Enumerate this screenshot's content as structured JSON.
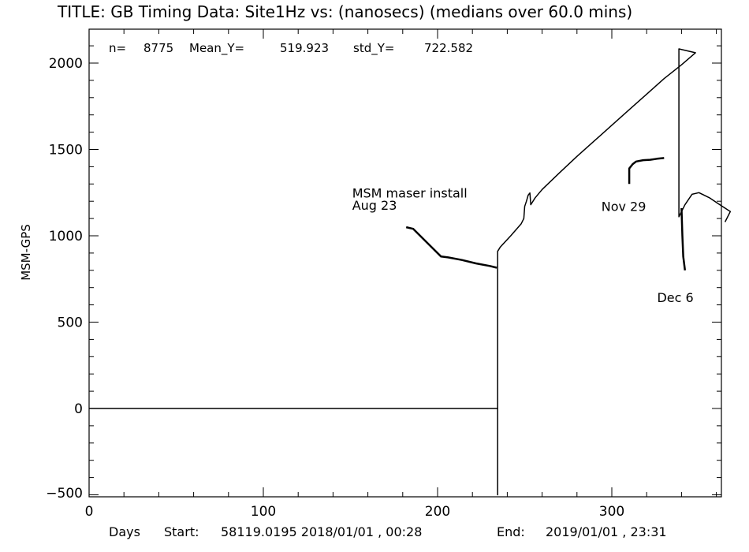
{
  "chart_data": {
    "type": "line",
    "title": "TITLE: GB Timing Data: Site1Hz vs: (nanosecs) (medians over 60.0 mins)",
    "ylabel": "MSM-GPS",
    "xlabel": "",
    "xlim": [
      0,
      365
    ],
    "ylim": [
      -500,
      2200
    ],
    "x_ticks": [
      0,
      100,
      200,
      300
    ],
    "y_ticks": [
      -500,
      0,
      500,
      1000,
      1500,
      2000
    ],
    "grid": false,
    "stats": {
      "n_label": "n=",
      "n": "8775",
      "mean_label": "Mean_Y=",
      "mean": "519.923",
      "std_label": "std_Y=",
      "std": "722.582"
    },
    "footer": {
      "days": "Days",
      "start_label": "Start:",
      "start": "58119.0195 2018/01/01 , 00:28",
      "end_label": "End:",
      "end": "2019/01/01 , 23:31"
    },
    "annotations": [
      {
        "text": "MSM maser install",
        "x": 151,
        "y": 1222
      },
      {
        "text": "Aug 23",
        "x": 151,
        "y": 1150
      },
      {
        "text": "Nov 29",
        "x": 294,
        "y": 1143
      },
      {
        "text": "Dec 6",
        "x": 326,
        "y": 617
      }
    ],
    "series": [
      {
        "points": [
          [
            0,
            0
          ],
          [
            234.5,
            0
          ],
          [
            234.5,
            -500
          ],
          [
            234.5,
            910
          ],
          [
            236,
            935
          ],
          [
            242,
            1000
          ],
          [
            248,
            1070
          ],
          [
            249.5,
            1100
          ],
          [
            250,
            1170
          ],
          [
            251,
            1200
          ],
          [
            252,
            1235
          ],
          [
            253,
            1248
          ],
          [
            253.5,
            1180
          ],
          [
            256,
            1220
          ],
          [
            260,
            1268
          ],
          [
            270,
            1365
          ],
          [
            280,
            1460
          ],
          [
            290,
            1550
          ],
          [
            300,
            1640
          ],
          [
            310,
            1730
          ],
          [
            320,
            1820
          ],
          [
            330,
            1910
          ],
          [
            340,
            1990
          ],
          [
            348,
            2060
          ],
          [
            338.5,
            2082
          ],
          [
            338.5,
            1110
          ],
          [
            342,
            1180
          ],
          [
            346,
            1240
          ],
          [
            350,
            1250
          ],
          [
            356,
            1220
          ],
          [
            362,
            1180
          ],
          [
            368,
            1140
          ],
          [
            365,
            1080
          ]
        ]
      },
      {
        "points": [
          [
            182,
            1050
          ],
          [
            186,
            1040
          ],
          [
            194,
            960
          ],
          [
            202,
            880
          ],
          [
            206,
            875
          ],
          [
            214,
            860
          ],
          [
            222,
            840
          ],
          [
            230,
            825
          ],
          [
            234,
            815
          ]
        ]
      },
      {
        "points": [
          [
            310,
            1300
          ],
          [
            310,
            1390
          ],
          [
            312,
            1415
          ],
          [
            314,
            1430
          ],
          [
            318,
            1438
          ],
          [
            322,
            1440
          ],
          [
            326,
            1446
          ],
          [
            330,
            1450
          ]
        ]
      },
      {
        "points": [
          [
            340,
            1160
          ],
          [
            340.5,
            1000
          ],
          [
            341,
            880
          ],
          [
            342,
            800
          ]
        ]
      }
    ]
  }
}
